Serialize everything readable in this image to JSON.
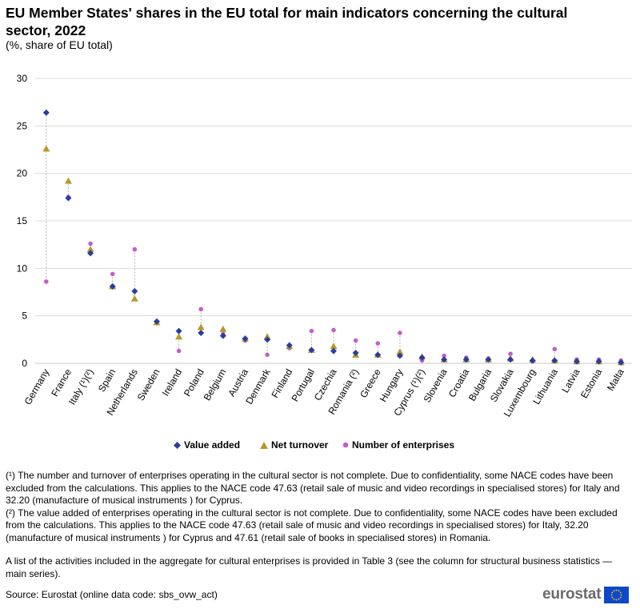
{
  "title": "EU Member States' shares in the EU total for main indicators concerning the cultural sector, 2022",
  "subtitle": "(%, share of EU total)",
  "chart_data": {
    "type": "scatter",
    "categories": [
      "Germany",
      "France",
      "Italy (¹)(²)",
      "Spain",
      "Netherlands",
      "Sweden",
      "Ireland",
      "Poland",
      "Belgium",
      "Austria",
      "Denmark",
      "Finland",
      "Portugal",
      "Czechia",
      "Romania (²)",
      "Greece",
      "Hungary",
      "Cyprus (¹)(²)",
      "Slovenia",
      "Croatia",
      "Bulgaria",
      "Slovakia",
      "Luxembourg",
      "Lithuania",
      "Latvia",
      "Estonia",
      "Malta"
    ],
    "series": [
      {
        "name": "Value added",
        "color": "#2a3d9f",
        "marker": "diamond",
        "values": [
          26.4,
          17.4,
          11.6,
          8.1,
          7.6,
          4.4,
          3.4,
          3.2,
          2.9,
          2.6,
          2.5,
          1.9,
          1.4,
          1.3,
          1.1,
          0.9,
          0.8,
          0.6,
          0.4,
          0.4,
          0.4,
          0.4,
          0.3,
          0.3,
          0.2,
          0.2,
          0.1
        ]
      },
      {
        "name": "Net turnover",
        "color": "#b8982a",
        "marker": "triangle",
        "values": [
          22.6,
          19.2,
          12.0,
          8.1,
          6.8,
          4.3,
          2.8,
          3.8,
          3.6,
          2.6,
          2.8,
          1.8,
          1.4,
          1.8,
          0.9,
          0.9,
          1.2,
          0.7,
          0.4,
          0.4,
          0.4,
          0.5,
          0.4,
          0.3,
          0.2,
          0.2,
          0.1
        ]
      },
      {
        "name": "Number of enterprises",
        "color": "#c35ec6",
        "marker": "circle",
        "values": [
          8.6,
          17.5,
          12.6,
          9.4,
          12.0,
          4.4,
          1.3,
          5.7,
          3.1,
          2.4,
          0.9,
          1.6,
          3.4,
          3.5,
          2.4,
          2.1,
          3.2,
          0.3,
          0.8,
          0.6,
          0.5,
          1.0,
          0.2,
          1.5,
          0.4,
          0.4,
          0.3
        ]
      }
    ],
    "y_ticks": [
      "0",
      "5",
      "10",
      "15",
      "20",
      "25",
      "30"
    ],
    "ylim": [
      0,
      30
    ],
    "grid": true,
    "xlabel": "",
    "ylabel": "",
    "legend_position": "bottom"
  },
  "footnotes": {
    "note1": "(¹) The number and turnover of enterprises operating in the cultural sector is not complete. Due to confidentiality, some NACE codes have been excluded from the calculations. This applies to the NACE code 47.63 (retail sale of music and video recordings in specialised stores) for Italy and 32.20 (manufacture of musical instruments ) for Cyprus.",
    "note2": "(²) The value added of enterprises operating in the cultural sector is not complete. Due to confidentiality, some NACE codes have been excluded from the calculations. This applies to the NACE code 47.63 (retail sale of music and video recordings in specialised stores) for Italy, 32.20 (manufacture of musical instruments ) for Cyprus and 47.61 (retail sale of books in specialised stores) in Romania.",
    "note3": "A list of the activities included in the aggregate for cultural enterprises is provided in Table 3 (see the column for structural business statistics — main series)."
  },
  "source": "Source: Eurostat (online data code: sbs_ovw_act)",
  "logo": {
    "text": "eurostat",
    "flag_color": "#0e47cb",
    "star_color": "#ffde00"
  }
}
